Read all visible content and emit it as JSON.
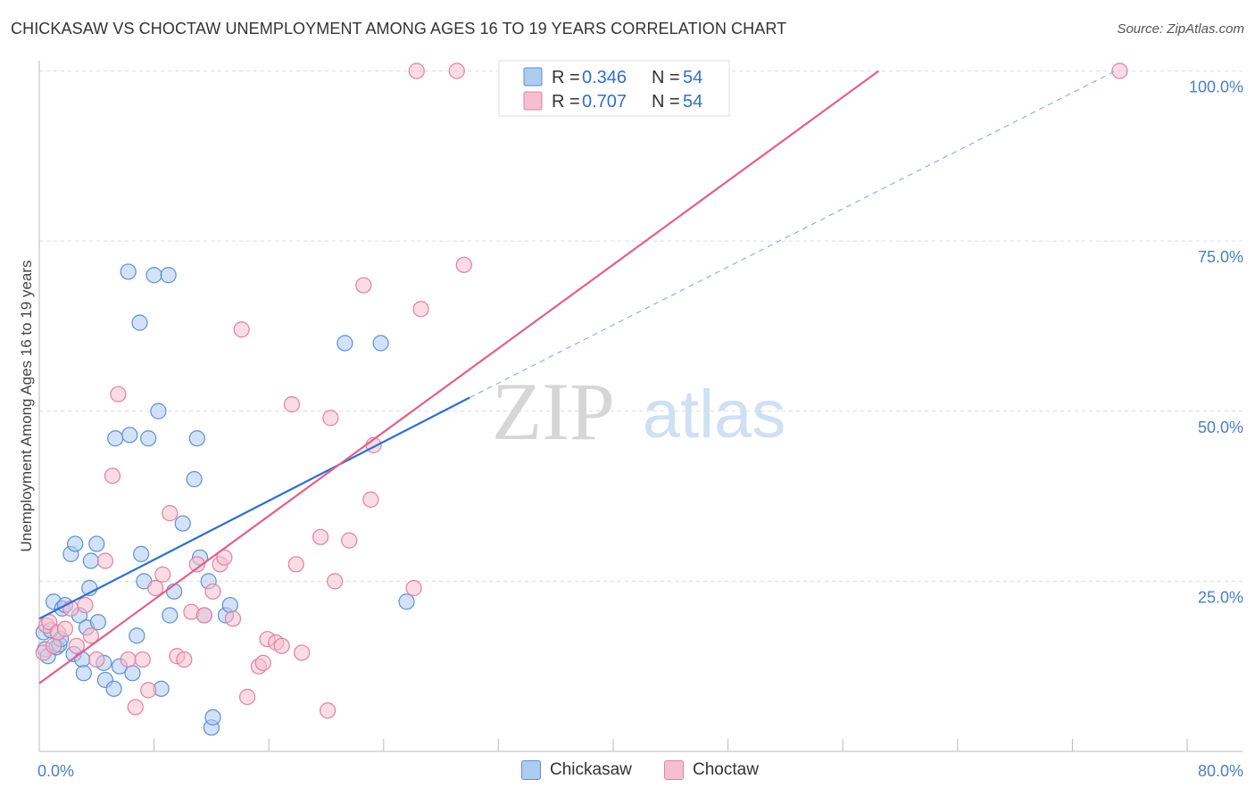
{
  "title": "CHICKASAW VS CHOCTAW UNEMPLOYMENT AMONG AGES 16 TO 19 YEARS CORRELATION CHART",
  "source": "Source: ZipAtlas.com",
  "watermark": {
    "zip": "ZIP",
    "atlas": "atlas"
  },
  "colors": {
    "chickasaw_fill": "#aecbf0",
    "chickasaw_stroke": "#5b8fd6",
    "chickasaw_line": "#2f6fce",
    "choctaw_fill": "#f6bfd0",
    "choctaw_stroke": "#e37fa0",
    "choctaw_line": "#e0608e",
    "tick": "#4a7fc7",
    "grid": "#dcdcdc"
  },
  "legend": {
    "rows": [
      {
        "r_label": "R =",
        "r_value": "0.346",
        "n_label": "N =",
        "n_value": "54"
      },
      {
        "r_label": "R =",
        "r_value": "0.707",
        "n_label": "N =",
        "n_value": "54"
      }
    ]
  },
  "bottom_legend": [
    "Chickasaw",
    "Choctaw"
  ],
  "chart_data": {
    "type": "scatter",
    "title": "CHICKASAW VS CHOCTAW UNEMPLOYMENT AMONG AGES 16 TO 19 YEARS CORRELATION CHART",
    "xlabel": "",
    "ylabel": "Unemployment Among Ages 16 to 19 years",
    "xlim": [
      0,
      80
    ],
    "ylim": [
      0,
      102
    ],
    "x_tick_labels": [
      {
        "value": 0,
        "label": "0.0%"
      },
      {
        "value": 80,
        "label": "80.0%"
      }
    ],
    "y_tick_labels": [
      {
        "value": 25,
        "label": "25.0%"
      },
      {
        "value": 50,
        "label": "50.0%"
      },
      {
        "value": 75,
        "label": "75.0%"
      },
      {
        "value": 100,
        "label": "100.0%"
      }
    ],
    "grid": true,
    "legend_position": "top-center",
    "series": [
      {
        "name": "Chickasaw",
        "r": 0.346,
        "n": 54,
        "trend": {
          "x": [
            0,
            30
          ],
          "y": [
            19.5,
            52
          ],
          "extension_x": [
            30,
            75
          ],
          "extension_y": [
            52,
            100
          ]
        },
        "points": [
          [
            0.3,
            17.5
          ],
          [
            0.4,
            15.0
          ],
          [
            0.6,
            14.0
          ],
          [
            0.8,
            17.8
          ],
          [
            1.0,
            22.0
          ],
          [
            1.2,
            15.3
          ],
          [
            1.4,
            15.7
          ],
          [
            1.5,
            16.5
          ],
          [
            1.6,
            21.0
          ],
          [
            1.8,
            21.5
          ],
          [
            2.2,
            29.0
          ],
          [
            2.4,
            14.3
          ],
          [
            2.5,
            30.5
          ],
          [
            2.8,
            20.0
          ],
          [
            3.0,
            13.5
          ],
          [
            3.1,
            11.5
          ],
          [
            3.3,
            18.2
          ],
          [
            3.5,
            24.0
          ],
          [
            3.6,
            28.0
          ],
          [
            4.0,
            30.5
          ],
          [
            4.1,
            19.0
          ],
          [
            4.5,
            13.0
          ],
          [
            4.6,
            10.5
          ],
          [
            5.2,
            9.2
          ],
          [
            5.3,
            46.0
          ],
          [
            5.6,
            12.5
          ],
          [
            6.2,
            70.5
          ],
          [
            6.3,
            46.5
          ],
          [
            6.5,
            11.5
          ],
          [
            6.8,
            17.0
          ],
          [
            7.0,
            63.0
          ],
          [
            7.1,
            29.0
          ],
          [
            7.3,
            25.0
          ],
          [
            7.6,
            46.0
          ],
          [
            8.0,
            70.0
          ],
          [
            8.3,
            50.0
          ],
          [
            8.5,
            9.2
          ],
          [
            9.0,
            70.0
          ],
          [
            9.1,
            20.0
          ],
          [
            9.4,
            23.5
          ],
          [
            10.0,
            33.5
          ],
          [
            10.8,
            40.0
          ],
          [
            11.0,
            46.0
          ],
          [
            11.2,
            28.5
          ],
          [
            11.5,
            20.0
          ],
          [
            11.8,
            25.0
          ],
          [
            12.0,
            3.5
          ],
          [
            12.1,
            5.0
          ],
          [
            13.0,
            20.0
          ],
          [
            13.3,
            21.5
          ],
          [
            21.3,
            60.0
          ],
          [
            23.8,
            60.0
          ],
          [
            25.6,
            22.0
          ],
          [
            37.5,
            100.0
          ]
        ]
      },
      {
        "name": "Choctaw",
        "r": 0.707,
        "n": 54,
        "trend": {
          "x": [
            0,
            58.5
          ],
          "y": [
            10,
            100
          ]
        },
        "points": [
          [
            0.3,
            14.5
          ],
          [
            0.5,
            18.5
          ],
          [
            0.7,
            19.0
          ],
          [
            1.0,
            15.5
          ],
          [
            1.3,
            17.5
          ],
          [
            1.8,
            18.0
          ],
          [
            2.2,
            21.0
          ],
          [
            2.6,
            15.5
          ],
          [
            3.2,
            21.5
          ],
          [
            3.6,
            17.0
          ],
          [
            4.0,
            13.5
          ],
          [
            4.6,
            28.0
          ],
          [
            5.1,
            40.5
          ],
          [
            5.5,
            52.5
          ],
          [
            6.2,
            13.5
          ],
          [
            6.7,
            6.5
          ],
          [
            7.2,
            13.5
          ],
          [
            7.6,
            9.0
          ],
          [
            8.1,
            24.0
          ],
          [
            8.6,
            26.0
          ],
          [
            9.1,
            35.0
          ],
          [
            9.6,
            14.0
          ],
          [
            10.1,
            13.5
          ],
          [
            10.6,
            20.5
          ],
          [
            11.0,
            27.5
          ],
          [
            11.5,
            20.0
          ],
          [
            12.1,
            23.5
          ],
          [
            12.6,
            27.5
          ],
          [
            12.9,
            28.5
          ],
          [
            13.5,
            19.5
          ],
          [
            14.1,
            62.0
          ],
          [
            14.5,
            8.0
          ],
          [
            15.3,
            12.5
          ],
          [
            15.6,
            13.0
          ],
          [
            15.9,
            16.5
          ],
          [
            16.5,
            16.0
          ],
          [
            16.9,
            15.5
          ],
          [
            17.6,
            51.0
          ],
          [
            17.9,
            27.5
          ],
          [
            18.3,
            14.5
          ],
          [
            19.6,
            31.5
          ],
          [
            20.1,
            6.0
          ],
          [
            20.3,
            49.0
          ],
          [
            20.6,
            25.0
          ],
          [
            21.6,
            31.0
          ],
          [
            22.6,
            68.5
          ],
          [
            23.1,
            37.0
          ],
          [
            23.3,
            45.0
          ],
          [
            26.1,
            24.0
          ],
          [
            26.6,
            65.0
          ],
          [
            26.3,
            100.0
          ],
          [
            29.6,
            71.5
          ],
          [
            29.1,
            100.0
          ],
          [
            75.3,
            100.0
          ]
        ]
      }
    ]
  }
}
